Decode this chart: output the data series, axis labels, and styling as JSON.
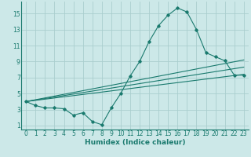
{
  "xlabel": "Humidex (Indice chaleur)",
  "xlim": [
    -0.5,
    23.5
  ],
  "ylim": [
    0.5,
    16.5
  ],
  "yticks": [
    1,
    3,
    5,
    7,
    9,
    11,
    13,
    15
  ],
  "xticks": [
    0,
    1,
    2,
    3,
    4,
    5,
    6,
    7,
    8,
    9,
    10,
    11,
    12,
    13,
    14,
    15,
    16,
    17,
    18,
    19,
    20,
    21,
    22,
    23
  ],
  "bg_color": "#cce8e8",
  "grid_color": "#aacece",
  "line_color": "#1a7a6e",
  "line1_x": [
    0,
    1,
    2,
    3,
    4,
    5,
    6,
    7,
    8,
    9,
    10,
    11,
    12,
    13,
    14,
    15,
    16,
    17,
    18,
    19,
    20,
    21,
    22,
    23
  ],
  "line1_y": [
    4.0,
    3.5,
    3.2,
    3.2,
    3.1,
    2.3,
    2.6,
    1.5,
    1.1,
    3.2,
    5.0,
    7.2,
    9.0,
    11.5,
    13.5,
    14.8,
    15.7,
    15.2,
    13.0,
    10.1,
    9.6,
    9.1,
    7.3,
    7.3
  ],
  "line2_x": [
    0,
    23
  ],
  "line2_y": [
    4.0,
    7.4
  ],
  "line3_x": [
    0,
    23
  ],
  "line3_y": [
    4.0,
    8.3
  ],
  "line4_x": [
    0,
    23
  ],
  "line4_y": [
    4.0,
    9.2
  ]
}
